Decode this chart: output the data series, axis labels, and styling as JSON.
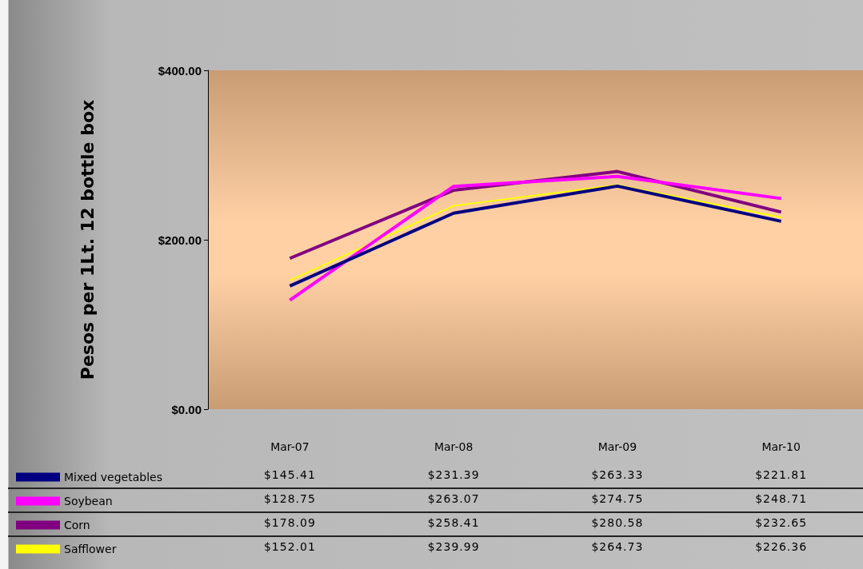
{
  "chart_data": {
    "type": "line",
    "ylabel": "Pesos per 1Lt. 12 bottle box",
    "categories": [
      "Mar-07",
      "Mar-08",
      "Mar-09",
      "Mar-10"
    ],
    "series": [
      {
        "name": "Mixed vegetables",
        "color": "#000080",
        "values": [
          145.41,
          231.39,
          263.33,
          221.81
        ],
        "value_labels": [
          "$145.41",
          "$231.39",
          "$263.33",
          "$221.81"
        ]
      },
      {
        "name": "Soybean",
        "color": "#ff00ff",
        "values": [
          128.75,
          263.07,
          274.75,
          248.71
        ],
        "value_labels": [
          "$128.75",
          "$263.07",
          "$274.75",
          "$248.71"
        ]
      },
      {
        "name": "Corn",
        "color": "#800080",
        "values": [
          178.09,
          258.41,
          280.58,
          232.65
        ],
        "value_labels": [
          "$178.09",
          "$258.41",
          "$280.58",
          "$232.65"
        ]
      },
      {
        "name": "Safflower",
        "color": "#ffff00",
        "values": [
          152.01,
          239.99,
          264.73,
          226.36
        ],
        "value_labels": [
          "$152.01",
          "$239.99",
          "$264.73",
          "$226.36"
        ]
      }
    ],
    "ylim": [
      0,
      400
    ],
    "yticks": [
      {
        "value": 0,
        "label": "$0.00"
      },
      {
        "value": 200,
        "label": "$200.00"
      },
      {
        "value": 400,
        "label": "$400.00"
      }
    ],
    "grid": false,
    "legend": "bottom left",
    "marker": "none"
  }
}
